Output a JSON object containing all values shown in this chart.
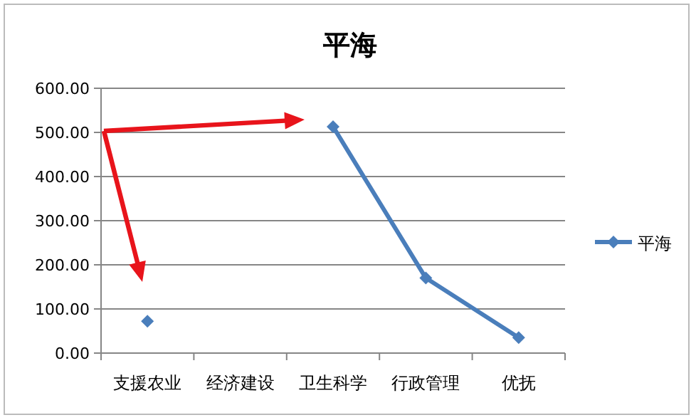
{
  "chart_data": {
    "type": "line",
    "title": "平海",
    "categories": [
      "支援农业",
      "经济建设",
      "卫生科学",
      "行政管理",
      "优抚"
    ],
    "series": [
      {
        "name": "平海",
        "color": "#4a7ebb",
        "values": [
          72,
          null,
          513,
          170,
          35
        ]
      }
    ],
    "ylim": [
      0,
      600
    ],
    "yticks": [
      {
        "value": 0,
        "label": "0.00"
      },
      {
        "value": 100,
        "label": "100.00"
      },
      {
        "value": 200,
        "label": "200.00"
      },
      {
        "value": 300,
        "label": "300.00"
      },
      {
        "value": 400,
        "label": "400.00"
      },
      {
        "value": 500,
        "label": "500.00"
      },
      {
        "value": 600,
        "label": "600.00"
      }
    ],
    "grid": "y",
    "legend": "right",
    "marker": "diamond",
    "line_style": "solid"
  }
}
